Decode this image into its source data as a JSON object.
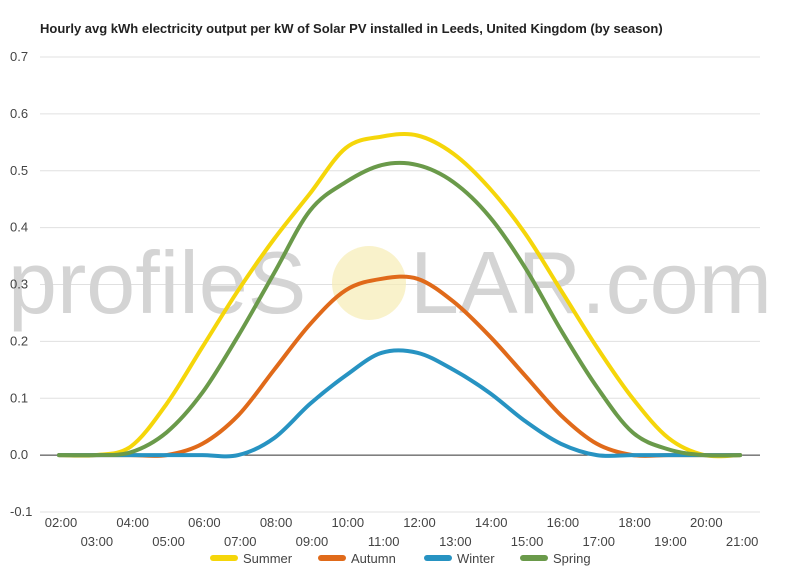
{
  "watermark": {
    "text_left": "profileS",
    "text_right": "LAR.com"
  },
  "chart_data": {
    "type": "line",
    "title": "Hourly avg kWh electricity output per kW of Solar PV installed in Leeds, United Kingdom (by season)",
    "xlabel": "",
    "ylabel": "",
    "ylim": [
      -0.1,
      0.7
    ],
    "yticks": [
      "-0.1",
      "0.0",
      "0.1",
      "0.2",
      "0.3",
      "0.4",
      "0.5",
      "0.6",
      "0.7"
    ],
    "x": [
      "02:00",
      "03:00",
      "04:00",
      "05:00",
      "06:00",
      "07:00",
      "08:00",
      "09:00",
      "10:00",
      "11:00",
      "12:00",
      "13:00",
      "14:00",
      "15:00",
      "16:00",
      "17:00",
      "18:00",
      "19:00",
      "20:00",
      "21:00"
    ],
    "grid": true,
    "legend_position": "bottom",
    "series": [
      {
        "name": "Summer",
        "color": "#f5d60a",
        "values": [
          0.0,
          0.0,
          0.015,
          0.09,
          0.19,
          0.29,
          0.38,
          0.46,
          0.54,
          0.56,
          0.562,
          0.53,
          0.47,
          0.39,
          0.29,
          0.19,
          0.1,
          0.03,
          0.0,
          0.0
        ]
      },
      {
        "name": "Autumn",
        "color": "#e06a1a",
        "values": [
          0.0,
          0.0,
          0.0,
          0.0,
          0.02,
          0.07,
          0.15,
          0.23,
          0.29,
          0.31,
          0.31,
          0.27,
          0.21,
          0.14,
          0.07,
          0.02,
          0.0,
          0.0,
          0.0,
          0.0
        ]
      },
      {
        "name": "Winter",
        "color": "#2793c2",
        "values": [
          0.0,
          0.0,
          0.0,
          0.0,
          0.0,
          0.0,
          0.03,
          0.09,
          0.14,
          0.18,
          0.18,
          0.15,
          0.11,
          0.06,
          0.02,
          0.0,
          0.0,
          0.0,
          0.0,
          0.0
        ]
      },
      {
        "name": "Spring",
        "color": "#6a9a4a",
        "values": [
          0.0,
          0.0,
          0.005,
          0.04,
          0.11,
          0.21,
          0.32,
          0.43,
          0.48,
          0.51,
          0.51,
          0.48,
          0.42,
          0.33,
          0.22,
          0.12,
          0.04,
          0.01,
          0.0,
          0.0
        ]
      }
    ]
  }
}
